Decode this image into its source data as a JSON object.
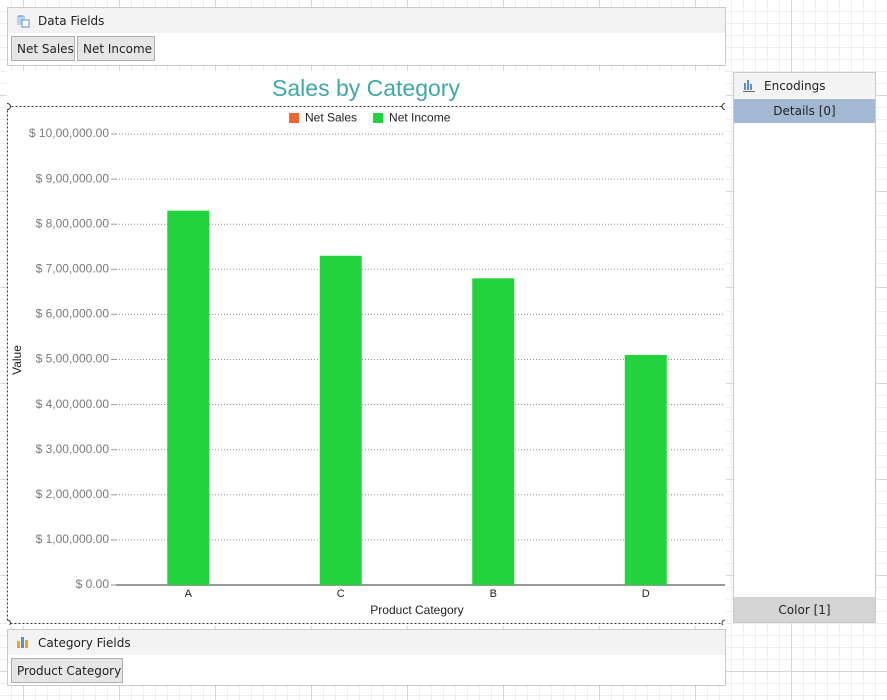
{
  "panels": {
    "data_fields": {
      "title": "Data Fields",
      "fields": [
        "Net Sales",
        "Net Income"
      ]
    },
    "encodings": {
      "title": "Encodings",
      "details": "Details [0]",
      "color": "Color [1]"
    },
    "category_fields": {
      "title": "Category Fields",
      "fields": [
        "Product Category"
      ]
    }
  },
  "chart_data": {
    "type": "bar",
    "title": "Sales by Category",
    "x_label": "Product Category",
    "y_label": "Value",
    "categories": [
      "A",
      "C",
      "B",
      "D"
    ],
    "series": [
      {
        "name": "Net Sales",
        "color": "#ec6632",
        "values": [
          null,
          null,
          null,
          null
        ]
      },
      {
        "name": "Net Income",
        "color": "#22d33e",
        "values": [
          830000,
          730000,
          680000,
          510000
        ]
      }
    ],
    "ylim": [
      0,
      1000000
    ],
    "yticks": [
      {
        "value": 0,
        "label": "$ 0.00"
      },
      {
        "value": 100000,
        "label": "$ 1,00,000.00"
      },
      {
        "value": 200000,
        "label": "$ 2,00,000.00"
      },
      {
        "value": 300000,
        "label": "$ 3,00,000.00"
      },
      {
        "value": 400000,
        "label": "$ 4,00,000.00"
      },
      {
        "value": 500000,
        "label": "$ 5,00,000.00"
      },
      {
        "value": 600000,
        "label": "$ 6,00,000.00"
      },
      {
        "value": 700000,
        "label": "$ 7,00,000.00"
      },
      {
        "value": 800000,
        "label": "$ 8,00,000.00"
      },
      {
        "value": 900000,
        "label": "$ 9,00,000.00"
      },
      {
        "value": 1000000,
        "label": "$ 10,00,000.00"
      }
    ],
    "grid": true,
    "legend": "top"
  }
}
